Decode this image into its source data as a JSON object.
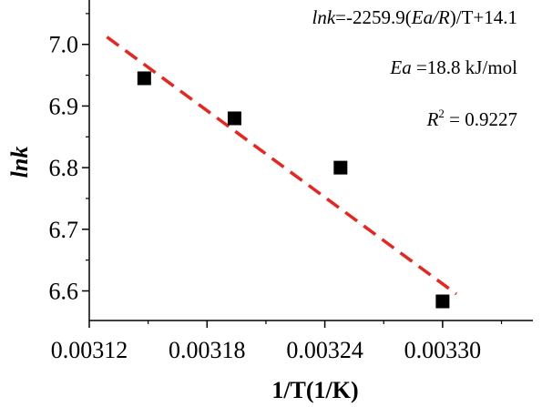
{
  "chart_data": {
    "type": "scatter",
    "xlabel": "1/T(1/K)",
    "ylabel": "lnk",
    "x_ticks": [
      0.00312,
      0.00318,
      0.00324,
      0.0033
    ],
    "x_tick_labels": [
      "0.00312",
      "0.00318",
      "0.00324",
      "0.00330"
    ],
    "y_ticks": [
      6.6,
      6.7,
      6.8,
      6.9,
      7.0
    ],
    "y_tick_labels": [
      "6.6",
      "6.7",
      "6.8",
      "6.9",
      "7.0"
    ],
    "xlim": [
      0.00312,
      0.003346
    ],
    "ylim": [
      6.552,
      7.072
    ],
    "grid": false,
    "series": [
      {
        "marker": "square",
        "color": "#000000",
        "x": [
          0.003148,
          0.003194,
          0.003248,
          0.0033
        ],
        "y": [
          6.945,
          6.88,
          6.8,
          6.583
        ]
      }
    ],
    "fit_line": {
      "style": "dashed",
      "color": "#e8251f",
      "x": [
        0.003129,
        0.003307
      ],
      "y": [
        7.012,
        6.595
      ]
    },
    "annotations": {
      "equation": {
        "part1": "lnk",
        "part2": "=-2259.9(",
        "part3": "Ea/R",
        "part4": ")/T+14.1"
      },
      "ea": {
        "part1": "Ea",
        "part2": " =18.8 kJ/mol"
      },
      "r2": {
        "part1": "R",
        "part2": "2",
        "part3": " = 0.9227"
      }
    }
  }
}
